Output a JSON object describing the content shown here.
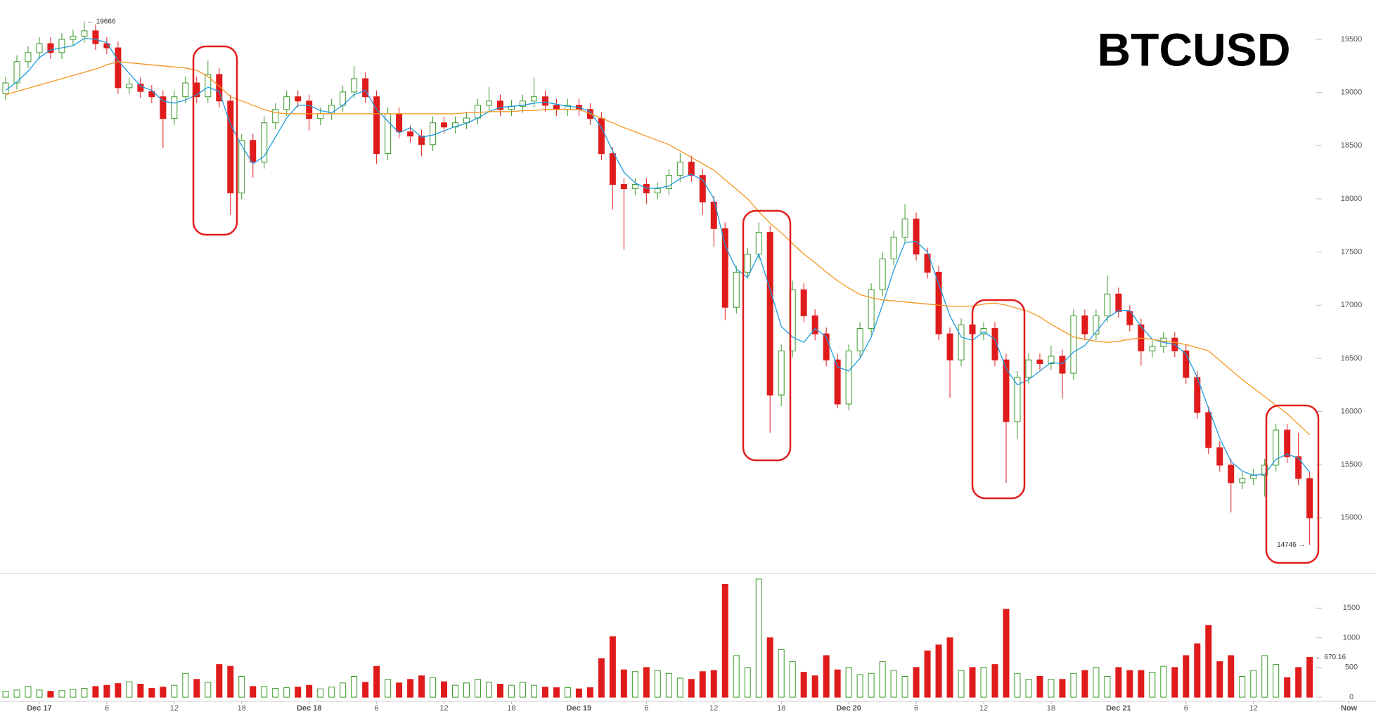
{
  "chart_data": {
    "type": "candlestick",
    "title": "BTCUSD",
    "up_color": "#3a9a2a",
    "down_color": "#e01b1b",
    "xlim": [
      -0.5,
      121.9
    ],
    "xticks": [
      {
        "value": 3,
        "label": "Dec 17"
      },
      {
        "value": 9,
        "label": "6"
      },
      {
        "value": 15,
        "label": "12"
      },
      {
        "value": 21,
        "label": "18"
      },
      {
        "value": 27,
        "label": "Dec 18"
      },
      {
        "value": 33,
        "label": "6"
      },
      {
        "value": 39,
        "label": "12"
      },
      {
        "value": 45,
        "label": "18"
      },
      {
        "value": 51,
        "label": "Dec 19"
      },
      {
        "value": 57,
        "label": "6"
      },
      {
        "value": 63,
        "label": "12"
      },
      {
        "value": 69,
        "label": "18"
      },
      {
        "value": 75,
        "label": "Dec 20"
      },
      {
        "value": 81,
        "label": "6"
      },
      {
        "value": 87,
        "label": "12"
      },
      {
        "value": 93,
        "label": "18"
      },
      {
        "value": 99,
        "label": "Dec 21"
      },
      {
        "value": 105,
        "label": "6"
      },
      {
        "value": 111,
        "label": "12"
      },
      {
        "value": 119.5,
        "label": "Now"
      }
    ],
    "ylim": [
      14490,
      19870
    ],
    "yticks": [
      15000,
      15500,
      16000,
      16500,
      17000,
      17500,
      18000,
      18500,
      19000,
      19500
    ],
    "open": [
      18990,
      19090,
      19290,
      19375,
      19460,
      19375,
      19500,
      19530,
      19580,
      19460,
      19420,
      19045,
      19080,
      19010,
      18960,
      18755,
      18960,
      19090,
      18960,
      19170,
      18920,
      18055,
      18550,
      18345,
      18715,
      18840,
      18960,
      18920,
      18755,
      18800,
      18880,
      19005,
      19130,
      18960,
      18425,
      18800,
      18630,
      18590,
      18510,
      18715,
      18675,
      18715,
      18760,
      18880,
      18920,
      18840,
      18870,
      18920,
      18960,
      18880,
      18840,
      18880,
      18840,
      18755,
      18425,
      18135,
      18095,
      18135,
      18055,
      18095,
      18220,
      18345,
      18220,
      17970,
      17720,
      16980,
      17310,
      17480,
      17685,
      16155,
      16570,
      17145,
      16900,
      16730,
      16485,
      16070,
      16570,
      16780,
      17145,
      17435,
      17640,
      17810,
      17480,
      17310,
      16730,
      16485,
      16815,
      16730,
      16780,
      16485,
      15905,
      16320,
      16485,
      16450,
      16520,
      16360,
      16900,
      16730,
      16900,
      17105,
      16940,
      16815,
      16570,
      16610,
      16690,
      16570,
      16320,
      15990,
      15660,
      15495,
      15330,
      15370,
      15400,
      15495,
      15825,
      15575,
      15370
    ],
    "high": [
      19150,
      19350,
      19435,
      19520,
      19520,
      19560,
      19590,
      19666,
      19640,
      19520,
      19480,
      19140,
      19140,
      19070,
      19020,
      19020,
      19150,
      19150,
      19300,
      19230,
      18980,
      18610,
      18610,
      18775,
      18900,
      19020,
      19020,
      18980,
      18860,
      18940,
      19065,
      19250,
      19190,
      19020,
      18860,
      18860,
      18690,
      18650,
      18775,
      18775,
      18775,
      18820,
      18940,
      19050,
      18980,
      18930,
      18980,
      19140,
      19020,
      18940,
      18940,
      18940,
      18900,
      18815,
      18485,
      18195,
      18195,
      18195,
      18155,
      18280,
      18430,
      18405,
      18280,
      18030,
      17780,
      17370,
      17540,
      17780,
      17745,
      16630,
      17230,
      17205,
      16960,
      16790,
      16545,
      16630,
      16840,
      17205,
      17495,
      17700,
      17950,
      17870,
      17540,
      17370,
      16790,
      16875,
      16875,
      16840,
      16840,
      16545,
      16380,
      16545,
      16545,
      16620,
      16580,
      16960,
      16960,
      16960,
      17280,
      17165,
      17000,
      16875,
      16670,
      16750,
      16750,
      16630,
      16380,
      16050,
      15720,
      15555,
      15430,
      15460,
      15555,
      15885,
      15885,
      15800,
      15430
    ],
    "low": [
      18930,
      19030,
      19230,
      19315,
      19315,
      19315,
      19440,
      19470,
      19400,
      19360,
      18985,
      18985,
      18950,
      18900,
      18480,
      18695,
      18900,
      18900,
      18900,
      18860,
      17850,
      17995,
      18200,
      18285,
      18655,
      18780,
      18860,
      18640,
      18695,
      18740,
      18820,
      18945,
      18900,
      18330,
      18365,
      18570,
      18530,
      18400,
      18450,
      18615,
      18615,
      18655,
      18700,
      18820,
      18780,
      18780,
      18810,
      18860,
      18820,
      18780,
      18780,
      18780,
      18695,
      18365,
      17900,
      17520,
      18035,
      17950,
      17995,
      18035,
      18160,
      18160,
      17850,
      17550,
      16860,
      16920,
      17250,
      17420,
      15800,
      16050,
      16510,
      16840,
      16670,
      16425,
      16030,
      16010,
      16510,
      16720,
      17085,
      17375,
      17580,
      17420,
      17250,
      16670,
      16130,
      16425,
      16670,
      16670,
      16425,
      15330,
      15745,
      16260,
      16390,
      16390,
      16120,
      16300,
      16670,
      16670,
      16840,
      16880,
      16755,
      16430,
      16510,
      16550,
      16510,
      16260,
      15930,
      15600,
      15435,
      15050,
      15270,
      15310,
      15200,
      15435,
      15515,
      15310,
      14746
    ],
    "close": [
      19090,
      19290,
      19375,
      19460,
      19375,
      19500,
      19530,
      19580,
      19460,
      19420,
      19045,
      19080,
      19010,
      18960,
      18755,
      18960,
      19090,
      18960,
      19170,
      18920,
      18055,
      18550,
      18345,
      18715,
      18840,
      18960,
      18920,
      18755,
      18800,
      18880,
      19005,
      19130,
      18960,
      18425,
      18800,
      18630,
      18590,
      18510,
      18715,
      18675,
      18715,
      18760,
      18880,
      18920,
      18840,
      18870,
      18920,
      18960,
      18880,
      18840,
      18880,
      18840,
      18755,
      18425,
      18135,
      18095,
      18135,
      18055,
      18095,
      18220,
      18345,
      18220,
      17970,
      17720,
      16980,
      17310,
      17480,
      17685,
      16155,
      16570,
      17145,
      16900,
      16730,
      16485,
      16070,
      16570,
      16780,
      17145,
      17435,
      17640,
      17810,
      17480,
      17310,
      16730,
      16485,
      16815,
      16730,
      16780,
      16485,
      15905,
      16320,
      16485,
      16450,
      16520,
      16360,
      16900,
      16730,
      16900,
      17105,
      16940,
      16815,
      16570,
      16610,
      16690,
      16570,
      16320,
      15990,
      15660,
      15495,
      15330,
      15370,
      15400,
      15495,
      15825,
      15575,
      15370,
      15000
    ],
    "series": [
      {
        "color": "#1e9be0",
        "values": [
          19020,
          19100,
          19200,
          19330,
          19400,
          19420,
          19440,
          19510,
          19500,
          19470,
          19300,
          19180,
          19060,
          19020,
          18920,
          18900,
          18930,
          18980,
          19050,
          19010,
          18700,
          18500,
          18330,
          18400,
          18580,
          18760,
          18880,
          18880,
          18830,
          18810,
          18880,
          18980,
          19020,
          18840,
          18730,
          18620,
          18670,
          18580,
          18600,
          18640,
          18680,
          18710,
          18760,
          18820,
          18860,
          18870,
          18880,
          18900,
          18910,
          18890,
          18870,
          18860,
          18820,
          18670,
          18450,
          18250,
          18150,
          18100,
          18100,
          18120,
          18190,
          18230,
          18180,
          18000,
          17560,
          17340,
          17260,
          17480,
          17150,
          16800,
          16700,
          16650,
          16780,
          16700,
          16420,
          16380,
          16500,
          16700,
          17000,
          17330,
          17590,
          17600,
          17500,
          17200,
          16900,
          16700,
          16670,
          16750,
          16680,
          16400,
          16250,
          16300,
          16380,
          16460,
          16450,
          16560,
          16620,
          16750,
          16880,
          16950,
          16950,
          16800,
          16680,
          16650,
          16630,
          16540,
          16320,
          16030,
          15750,
          15530,
          15440,
          15400,
          15410,
          15550,
          15600,
          15560,
          15430
        ]
      },
      {
        "color": "#f5951f",
        "values": [
          18980,
          19010,
          19040,
          19070,
          19100,
          19130,
          19160,
          19190,
          19220,
          19260,
          19290,
          19280,
          19270,
          19260,
          19250,
          19240,
          19230,
          19210,
          19150,
          19060,
          18960,
          18920,
          18880,
          18840,
          18810,
          18800,
          18800,
          18800,
          18800,
          18800,
          18800,
          18800,
          18800,
          18800,
          18800,
          18800,
          18800,
          18800,
          18800,
          18800,
          18800,
          18810,
          18810,
          18820,
          18820,
          18820,
          18830,
          18830,
          18840,
          18840,
          18840,
          18840,
          18800,
          18760,
          18715,
          18670,
          18630,
          18590,
          18550,
          18510,
          18450,
          18390,
          18330,
          18270,
          18180,
          18090,
          18000,
          17880,
          17770,
          17680,
          17580,
          17480,
          17400,
          17310,
          17230,
          17160,
          17100,
          17070,
          17050,
          17040,
          17030,
          17020,
          17010,
          17000,
          16990,
          16990,
          16990,
          17010,
          17020,
          17000,
          16970,
          16940,
          16890,
          16820,
          16760,
          16700,
          16680,
          16660,
          16650,
          16660,
          16680,
          16690,
          16680,
          16660,
          16650,
          16630,
          16600,
          16570,
          16480,
          16390,
          16300,
          16220,
          16140,
          16060,
          15980,
          15880,
          15780
        ]
      }
    ],
    "volume": {
      "ylim": [
        -70,
        2060
      ],
      "yticks": [
        0,
        500,
        1000,
        1500
      ],
      "values": [
        100,
        120,
        180,
        120,
        100,
        110,
        130,
        150,
        180,
        200,
        230,
        260,
        220,
        150,
        170,
        200,
        400,
        300,
        250,
        550,
        520,
        350,
        180,
        180,
        150,
        160,
        170,
        200,
        140,
        170,
        240,
        350,
        250,
        520,
        300,
        240,
        300,
        360,
        330,
        260,
        200,
        240,
        300,
        250,
        220,
        200,
        250,
        200,
        170,
        160,
        160,
        140,
        160,
        650,
        1020,
        460,
        430,
        500,
        450,
        400,
        320,
        300,
        430,
        450,
        1900,
        700,
        500,
        1990,
        1000,
        800,
        600,
        420,
        360,
        700,
        460,
        500,
        380,
        400,
        600,
        450,
        350,
        500,
        780,
        880,
        1000,
        450,
        500,
        500,
        550,
        1480,
        400,
        300,
        350,
        300,
        300,
        400,
        450,
        500,
        350,
        500,
        450,
        450,
        420,
        520,
        500,
        700,
        900,
        1210,
        600,
        700,
        350,
        450,
        700,
        550,
        330,
        500,
        670.16
      ]
    },
    "annotations": {
      "high": {
        "index": 7,
        "value": 19666,
        "label": "← 19666"
      },
      "low": {
        "index": 116,
        "value": 14746,
        "label": "14746 →"
      },
      "last_volume": {
        "index": 116,
        "value": 670.16,
        "label": "← 670.16"
      }
    }
  }
}
